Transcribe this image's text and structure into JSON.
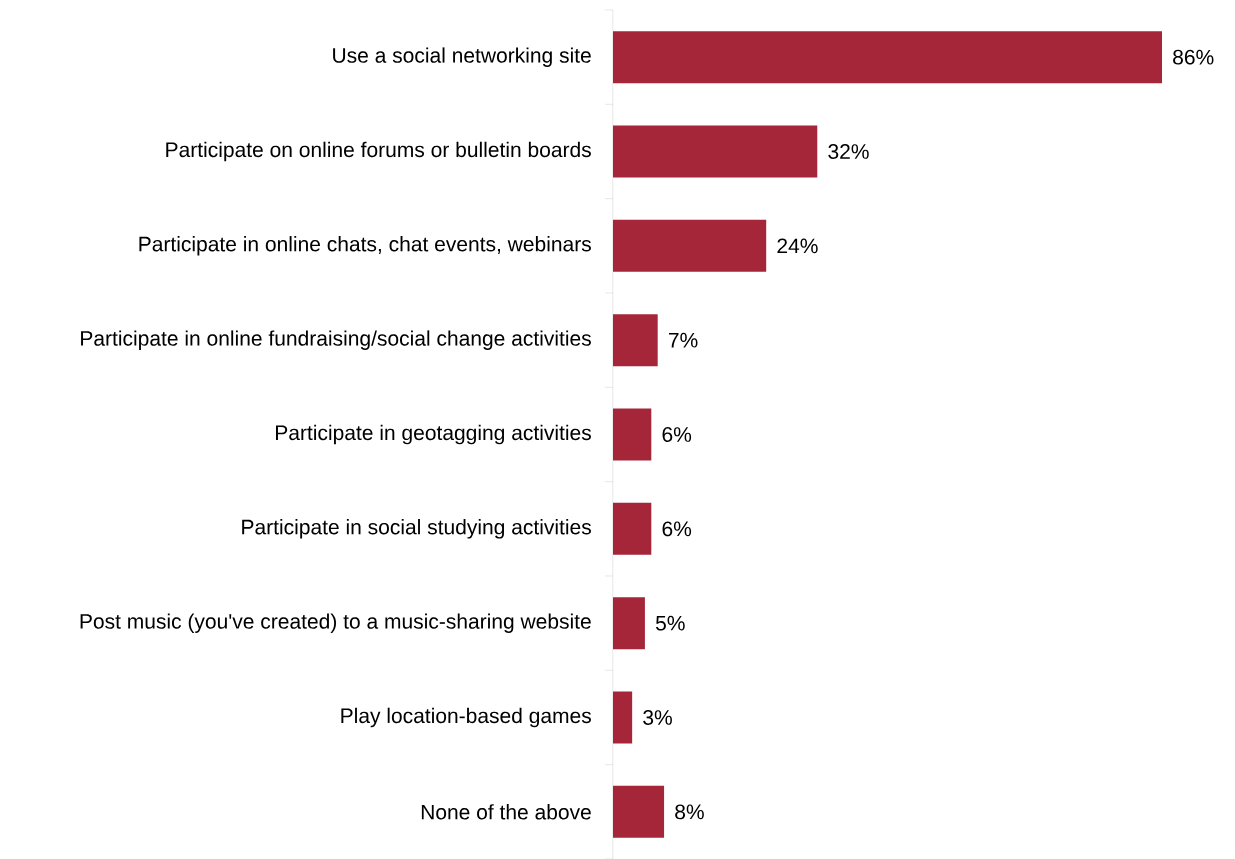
{
  "chart_data": {
    "type": "bar",
    "orientation": "horizontal",
    "categories": [
      "Use a social networking site",
      "Participate on online forums or bulletin boards",
      "Participate in online chats, chat events, webinars",
      "Participate in online fundraising/social change activities",
      "Participate in geotagging activities",
      "Participate in social studying activities",
      "Post music (you've created) to a music-sharing website",
      "Play location-based games",
      "None of the above"
    ],
    "values": [
      86,
      32,
      24,
      7,
      6,
      6,
      5,
      3,
      8
    ],
    "value_labels": [
      "86%",
      "32%",
      "24%",
      "7%",
      "6%",
      "6%",
      "5%",
      "3%",
      "8%"
    ],
    "color": "#a52639"
  }
}
